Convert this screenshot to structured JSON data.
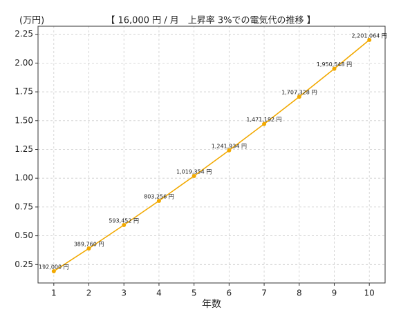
{
  "chart_data": {
    "type": "line",
    "title": "【 16,000 円 / 月　上昇率 3%での電気代の推移 】",
    "y_unit": "(万円)",
    "x_label": "年数",
    "x": [
      1,
      2,
      3,
      4,
      5,
      6,
      7,
      8,
      9,
      10
    ],
    "series": [
      {
        "color": "#f2a900",
        "values": [
          0.192,
          0.38976,
          0.593452,
          0.803256,
          1.019354,
          1.241934,
          1.471192,
          1.707328,
          1.950548,
          2.201064
        ],
        "value_labels": [
          "192,000 円",
          "389,760 円",
          "593,452 円",
          "803,256 円",
          "1,019,354 円",
          "1,241,934 円",
          "1,471,192 円",
          "1,707,328 円",
          "1,950,548 円",
          "2,201,064 円"
        ]
      }
    ],
    "xlim": [
      0.55,
      10.45
    ],
    "xticks": [
      1,
      2,
      3,
      4,
      5,
      6,
      7,
      8,
      9,
      10
    ],
    "ylim": [
      0.09,
      2.32
    ],
    "yticks": [
      0.25,
      {
        "value": 0.5,
        "label": "0.50"
      },
      0.75,
      {
        "value": 1,
        "label": "1.00"
      },
      1.25,
      {
        "value": 1.5,
        "label": "1.50"
      },
      1.75,
      {
        "value": 2,
        "label": "2.00"
      },
      2.25
    ],
    "grid": true
  }
}
